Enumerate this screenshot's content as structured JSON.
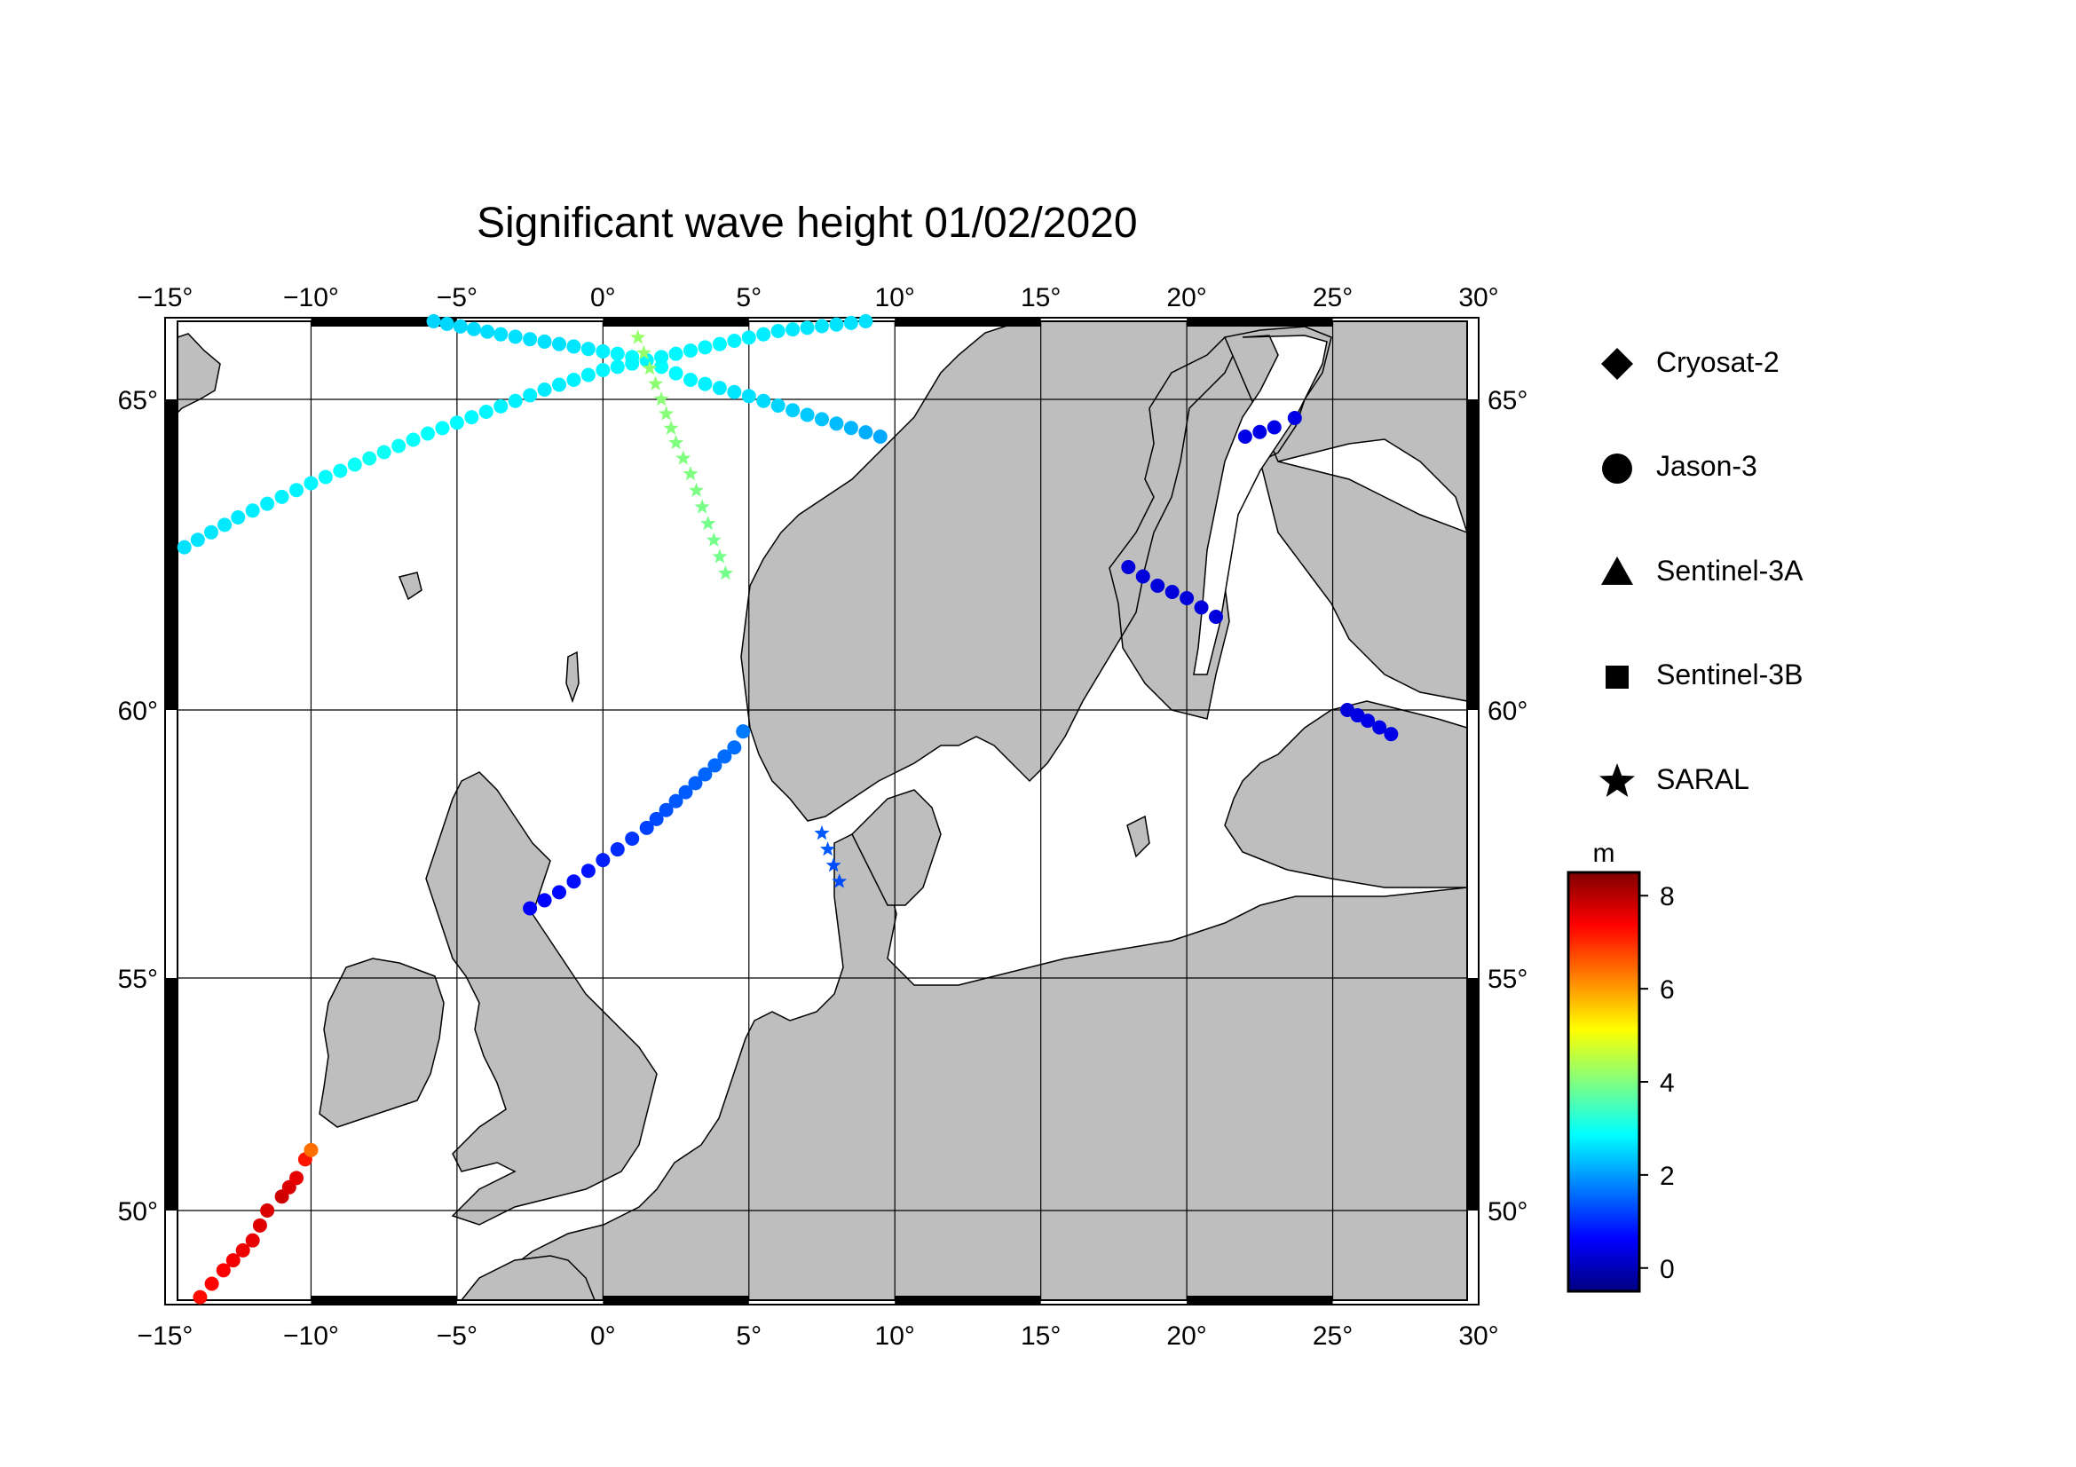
{
  "title": "Significant wave height 01/02/2020",
  "map": {
    "lon_range": [
      -15,
      30
    ],
    "lat_range": [
      48.5,
      66.2
    ],
    "lon_ticks": [
      "−15°",
      "−10°",
      "−5°",
      "0°",
      "5°",
      "10°",
      "15°",
      "20°",
      "25°",
      "30°"
    ],
    "lat_ticks": [
      "50°",
      "55°",
      "60°",
      "65°"
    ],
    "land_color": "#bebebe",
    "sea_color": "#ffffff",
    "grid": true
  },
  "legend": {
    "satellites": [
      {
        "name": "Cryosat-2",
        "symbol": "diamond"
      },
      {
        "name": "Jason-3",
        "symbol": "circle"
      },
      {
        "name": "Sentinel-3A",
        "symbol": "triangle"
      },
      {
        "name": "Sentinel-3B",
        "symbol": "square"
      },
      {
        "name": "SARAL",
        "symbol": "star"
      }
    ]
  },
  "colorbar": {
    "unit": "m",
    "min": -0.5,
    "max": 8.5,
    "ticks": [
      "8",
      "6",
      "4",
      "2",
      "0"
    ],
    "colors": [
      "#000080",
      "#0000ff",
      "#0080ff",
      "#00ffff",
      "#80ff80",
      "#ffff00",
      "#ff8000",
      "#ff0000",
      "#800000"
    ]
  },
  "chart_data": {
    "type": "scatter",
    "title": "Significant wave height 01/02/2020",
    "xlabel": "",
    "ylabel": "",
    "xlim": [
      -15,
      30
    ],
    "ylim": [
      48.5,
      66.2
    ],
    "color_unit": "m",
    "series": [
      {
        "name": "Jason-3",
        "symbol": "circle",
        "points": [
          [
            -5.8,
            66.2,
            2.5
          ],
          [
            -3.5,
            66.0,
            2.6
          ],
          [
            -1.5,
            65.85,
            2.6
          ],
          [
            0.5,
            65.7,
            2.8
          ],
          [
            1.5,
            65.6,
            2.9
          ],
          [
            3.0,
            65.3,
            2.8
          ],
          [
            5.0,
            65.05,
            2.6
          ],
          [
            7.0,
            64.75,
            2.4
          ],
          [
            9.5,
            64.4,
            2.1
          ]
        ]
      },
      {
        "name": "Jason-3",
        "symbol": "circle",
        "points": [
          [
            -14.8,
            62.5,
            2.6
          ],
          [
            -12.5,
            63.1,
            2.7
          ],
          [
            -10.0,
            63.65,
            2.8
          ],
          [
            -8.0,
            64.05,
            3.0
          ],
          [
            -6.0,
            64.45,
            2.9
          ],
          [
            -4.0,
            64.8,
            2.8
          ],
          [
            -2.0,
            65.15,
            2.7
          ],
          [
            0.0,
            65.45,
            2.8
          ],
          [
            2.0,
            65.65,
            2.8
          ],
          [
            4.0,
            65.85,
            2.8
          ],
          [
            6.0,
            66.05,
            2.7
          ],
          [
            9.0,
            66.2,
            2.6
          ]
        ]
      },
      {
        "name": "Jason-3",
        "symbol": "circle",
        "points": [
          [
            -2.5,
            56.3,
            0.6
          ],
          [
            -1.5,
            56.6,
            0.7
          ],
          [
            -0.5,
            57.0,
            0.8
          ],
          [
            0.5,
            57.4,
            1.0
          ],
          [
            1.5,
            57.8,
            1.2
          ],
          [
            2.5,
            58.3,
            1.4
          ],
          [
            3.5,
            58.8,
            1.5
          ],
          [
            4.5,
            59.3,
            1.6
          ],
          [
            4.8,
            59.6,
            1.7
          ]
        ]
      },
      {
        "name": "Jason-3",
        "symbol": "circle",
        "points": [
          [
            22.0,
            64.4,
            0.4
          ],
          [
            23.0,
            64.55,
            0.4
          ],
          [
            23.7,
            64.7,
            0.4
          ]
        ]
      },
      {
        "name": "Jason-3",
        "symbol": "circle",
        "points": [
          [
            18.0,
            62.3,
            0.3
          ],
          [
            19.0,
            62.0,
            0.3
          ],
          [
            20.0,
            61.8,
            0.3
          ],
          [
            21.0,
            61.5,
            0.3
          ]
        ]
      },
      {
        "name": "Jason-3",
        "symbol": "circle",
        "points": [
          [
            25.5,
            60.0,
            0.3
          ],
          [
            26.2,
            59.8,
            0.4
          ],
          [
            27.0,
            59.55,
            0.4
          ]
        ]
      },
      {
        "name": "Jason-3",
        "symbol": "circle",
        "points": [
          [
            -13.8,
            48.55,
            7.3
          ],
          [
            -13.0,
            49.0,
            7.4
          ],
          [
            -12.0,
            49.5,
            7.6
          ],
          [
            -11.5,
            50.0,
            7.7
          ],
          [
            -11.0,
            50.3,
            7.8
          ],
          [
            -10.5,
            50.7,
            7.6
          ],
          [
            -10.2,
            51.1,
            7.2
          ],
          [
            -10.0,
            51.3,
            6.4
          ]
        ]
      },
      {
        "name": "SARAL",
        "symbol": "star",
        "points": [
          [
            1.2,
            65.95,
            4.2
          ],
          [
            2.0,
            65.0,
            4.1
          ],
          [
            2.5,
            64.3,
            4.0
          ],
          [
            3.0,
            63.8,
            4.0
          ],
          [
            3.6,
            63.0,
            3.9
          ],
          [
            4.2,
            62.2,
            3.9
          ]
        ]
      },
      {
        "name": "SARAL",
        "symbol": "star",
        "points": [
          [
            7.5,
            57.7,
            1.4
          ],
          [
            7.7,
            57.4,
            1.4
          ],
          [
            7.9,
            57.1,
            1.3
          ],
          [
            8.1,
            56.8,
            1.3
          ]
        ]
      }
    ]
  }
}
